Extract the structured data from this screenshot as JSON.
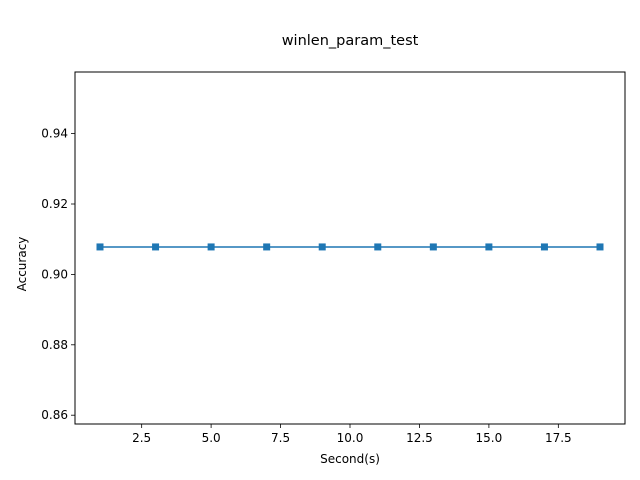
{
  "chart_data": {
    "type": "line",
    "title": "winlen_param_test",
    "xlabel": "Second(s)",
    "ylabel": "Accuracy",
    "xlim": [
      0.1,
      19.9
    ],
    "ylim": [
      0.8575,
      0.9575
    ],
    "xticks": [
      2.5,
      5.0,
      7.5,
      10.0,
      12.5,
      15.0,
      17.5
    ],
    "xtick_labels": [
      "2.5",
      "5.0",
      "7.5",
      "10.0",
      "12.5",
      "15.0",
      "17.5"
    ],
    "yticks": [
      0.86,
      0.88,
      0.9,
      0.92,
      0.94
    ],
    "ytick_labels": [
      "0.86",
      "0.88",
      "0.90",
      "0.92",
      "0.94"
    ],
    "grid": false,
    "series": [
      {
        "color": "#1f77b4",
        "marker": "square",
        "x": [
          1,
          3,
          5,
          7,
          9,
          11,
          13,
          15,
          17,
          19
        ],
        "y": [
          0.9078,
          0.9078,
          0.9078,
          0.9078,
          0.9078,
          0.9078,
          0.9078,
          0.9078,
          0.9078,
          0.9078
        ]
      }
    ]
  }
}
